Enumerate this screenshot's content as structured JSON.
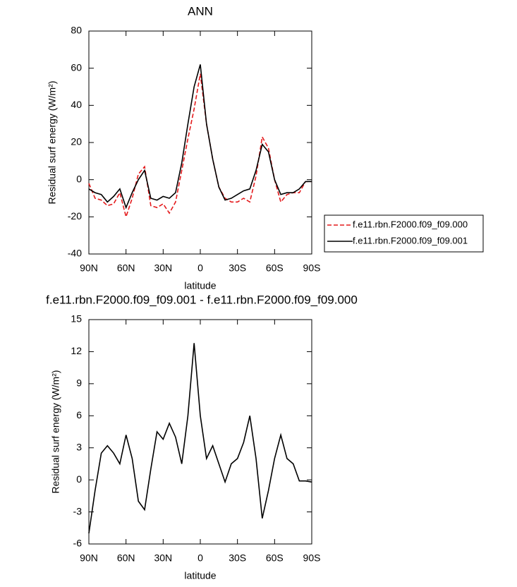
{
  "chart_data": [
    {
      "type": "line",
      "title": "ANN",
      "xlabel": "latitude",
      "ylabel": "Residual surf energy (W/m²)",
      "x": [
        90,
        85,
        80,
        75,
        70,
        65,
        60,
        55,
        50,
        45,
        40,
        35,
        30,
        25,
        20,
        15,
        10,
        5,
        0,
        -5,
        -10,
        -15,
        -20,
        -25,
        -30,
        -35,
        -40,
        -45,
        -50,
        -55,
        -60,
        -65,
        -70,
        -75,
        -80,
        -85,
        -90
      ],
      "series": [
        {
          "name": "f.e11.rbn.F2000.f09_f09.000",
          "color": "#e41a1c",
          "linestyle": "dashed",
          "values": [
            -2,
            -10,
            -11,
            -14,
            -13,
            -7,
            -20,
            -10,
            3,
            7,
            -14,
            -15,
            -13,
            -18,
            -12,
            5,
            22,
            38,
            57,
            30,
            11,
            -4,
            -10,
            -12,
            -12,
            -10,
            -12,
            2,
            23,
            17,
            0,
            -12,
            -8,
            -7,
            -7,
            -1,
            -1
          ]
        },
        {
          "name": "f.e11.rbn.F2000.f09_f09.001",
          "color": "#000000",
          "linestyle": "solid",
          "values": [
            -5,
            -7,
            -8,
            -12,
            -9,
            -5,
            -15,
            -7,
            0,
            5,
            -10,
            -11,
            -9,
            -10,
            -7,
            9,
            30,
            50,
            62,
            30,
            11,
            -4,
            -11,
            -10,
            -8,
            -6,
            -5,
            5,
            19,
            15,
            0,
            -8,
            -7,
            -7,
            -5,
            -1,
            -1
          ]
        }
      ],
      "xlim": [
        90,
        -90
      ],
      "xticks": [
        {
          "value": 90,
          "label": "90N"
        },
        {
          "value": 60,
          "label": "60N"
        },
        {
          "value": 30,
          "label": "30N"
        },
        0,
        {
          "value": -30,
          "label": "30S"
        },
        {
          "value": -60,
          "label": "60S"
        },
        {
          "value": -90,
          "label": "90S"
        }
      ],
      "ylim": [
        -40,
        80
      ],
      "yticks": [
        -40,
        -20,
        0,
        20,
        40,
        60,
        80
      ],
      "legend": "outside-right-bottom"
    },
    {
      "type": "line",
      "title": "f.e11.rbn.F2000.f09_f09.001 - f.e11.rbn.F2000.f09_f09.000",
      "xlabel": "latitude",
      "ylabel": "Residual surf energy (W/m²)",
      "x": [
        90,
        85,
        80,
        75,
        70,
        65,
        60,
        55,
        50,
        45,
        40,
        35,
        30,
        25,
        20,
        15,
        10,
        5,
        0,
        -5,
        -10,
        -15,
        -20,
        -25,
        -30,
        -35,
        -40,
        -45,
        -50,
        -55,
        -60,
        -65,
        -70,
        -75,
        -80,
        -85,
        -90
      ],
      "series": [
        {
          "color": "#000000",
          "linestyle": "solid",
          "values": [
            -5,
            -1,
            2.5,
            3.2,
            2.5,
            1.5,
            4.2,
            2,
            -2,
            -2.8,
            1,
            4.5,
            3.8,
            5.3,
            4,
            1.5,
            6,
            12.8,
            6,
            2,
            3.2,
            1.5,
            -0.2,
            1.5,
            2,
            3.5,
            6,
            2,
            -3.6,
            -1,
            2,
            4.2,
            2,
            1.5,
            -0.1,
            -0.1,
            -0.2
          ]
        }
      ],
      "xlim": [
        90,
        -90
      ],
      "xticks": [
        {
          "value": 90,
          "label": "90N"
        },
        {
          "value": 60,
          "label": "60N"
        },
        {
          "value": 30,
          "label": "30N"
        },
        0,
        {
          "value": -30,
          "label": "30S"
        },
        {
          "value": -60,
          "label": "60S"
        },
        {
          "value": -90,
          "label": "90S"
        }
      ],
      "ylim": [
        -6,
        15
      ],
      "yticks": [
        -6,
        -3,
        0,
        3,
        6,
        9,
        12,
        15
      ]
    }
  ]
}
